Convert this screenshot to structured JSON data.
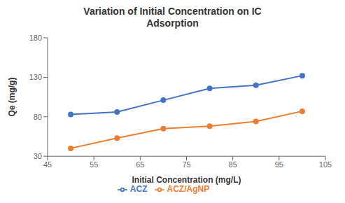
{
  "chart_data": {
    "type": "line",
    "title": "Variation of Initial Concentration on IC\nAdsorption",
    "x_label": "Initial Concentration (mg/L)",
    "y_label": "Qe (mg/g)",
    "x": [
      50,
      60,
      70,
      80,
      90,
      100
    ],
    "series": [
      {
        "name": "ACZ",
        "color": "#4472C4",
        "marker": "circle",
        "values": [
          83,
          86,
          101,
          116,
          120,
          132
        ]
      },
      {
        "name": "ACZ/AgNP",
        "color": "#ED7D31",
        "marker": "circle",
        "values": [
          40,
          53,
          65,
          68,
          74,
          87
        ]
      }
    ],
    "xlim": [
      45,
      105
    ],
    "ylim": [
      30,
      180
    ],
    "xticks": [
      45,
      55,
      65,
      75,
      85,
      95,
      105
    ],
    "yticks": [
      30,
      80,
      130,
      180
    ],
    "grid": false,
    "legend": "bottom"
  }
}
